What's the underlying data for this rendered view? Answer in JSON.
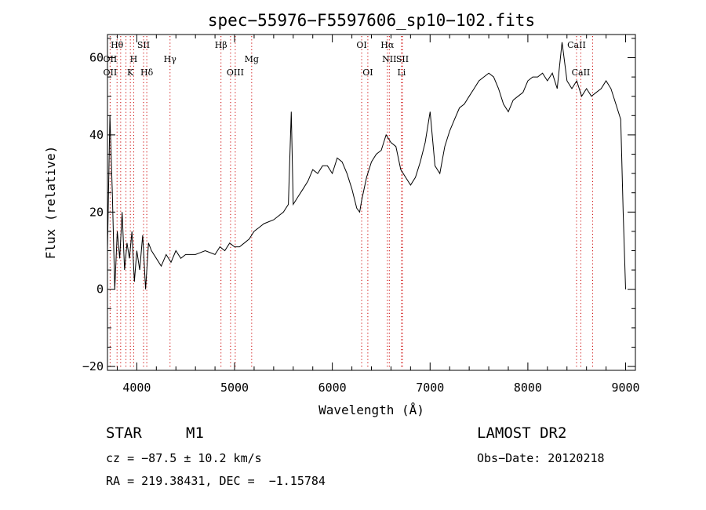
{
  "chart_data": {
    "type": "line",
    "title": "spec−55976−F5597606_sp10−102.fits",
    "xlabel": "Wavelength (Å)",
    "ylabel": "Flux (relative)",
    "xlim": [
      3700,
      9100
    ],
    "ylim": [
      -21,
      66
    ],
    "xticks": [
      4000,
      5000,
      6000,
      7000,
      8000,
      9000
    ],
    "xtick_labels": [
      "4000",
      "5000",
      "6000",
      "7000",
      "8000",
      "9000"
    ],
    "yticks": [
      -20,
      0,
      20,
      40,
      60
    ],
    "ytick_labels": [
      "−20",
      "0",
      "20",
      "40",
      "60"
    ],
    "line_color": "#000000",
    "marker_color": "#cc0000",
    "grid": false,
    "series": [
      {
        "name": "",
        "x": [
          3700,
          3725,
          3750,
          3775,
          3800,
          3825,
          3850,
          3875,
          3900,
          3925,
          3950,
          3975,
          4000,
          4030,
          4060,
          4090,
          4120,
          4150,
          4200,
          4250,
          4300,
          4350,
          4400,
          4450,
          4500,
          4600,
          4700,
          4800,
          4850,
          4900,
          4950,
          5000,
          5050,
          5100,
          5150,
          5200,
          5250,
          5300,
          5400,
          5500,
          5550,
          5580,
          5600,
          5650,
          5700,
          5750,
          5800,
          5850,
          5900,
          5950,
          6000,
          6050,
          6100,
          6150,
          6200,
          6250,
          6280,
          6300,
          6350,
          6400,
          6450,
          6500,
          6550,
          6600,
          6650,
          6700,
          6750,
          6800,
          6850,
          6900,
          6950,
          7000,
          7050,
          7100,
          7150,
          7200,
          7250,
          7300,
          7350,
          7400,
          7450,
          7500,
          7550,
          7600,
          7650,
          7700,
          7750,
          7800,
          7850,
          7900,
          7950,
          8000,
          8050,
          8100,
          8150,
          8200,
          8250,
          8300,
          8350,
          8400,
          8450,
          8500,
          8550,
          8600,
          8650,
          8700,
          8750,
          8800,
          8850,
          8900,
          8950,
          8975,
          9000
        ],
        "y": [
          10,
          45,
          25,
          0,
          15,
          8,
          20,
          5,
          12,
          8,
          15,
          2,
          10,
          5,
          14,
          0,
          12,
          10,
          8,
          6,
          9,
          7,
          10,
          8,
          9,
          9,
          10,
          9,
          11,
          10,
          12,
          11,
          11,
          12,
          13,
          15,
          16,
          17,
          18,
          20,
          22,
          46,
          22,
          24,
          26,
          28,
          31,
          30,
          32,
          32,
          30,
          34,
          33,
          30,
          26,
          21,
          20,
          23,
          29,
          33,
          35,
          36,
          40,
          38,
          37,
          31,
          29,
          27,
          29,
          33,
          38,
          46,
          32,
          30,
          37,
          41,
          44,
          47,
          48,
          50,
          52,
          54,
          55,
          56,
          55,
          52,
          48,
          46,
          49,
          50,
          51,
          54,
          55,
          55,
          56,
          54,
          56,
          52,
          64,
          54,
          52,
          54,
          50,
          52,
          50,
          51,
          52,
          54,
          52,
          48,
          44,
          20,
          0
        ]
      }
    ],
    "line_markers": [
      {
        "label": "Hθ",
        "x": 3798,
        "row": 0
      },
      {
        "label": "SII",
        "x": 4069,
        "row": 0
      },
      {
        "label": "Hβ",
        "x": 4861,
        "row": 0
      },
      {
        "label": "OI",
        "x": 6300,
        "row": 0
      },
      {
        "label": "Hα",
        "x": 6563,
        "row": 0
      },
      {
        "label": "CaII",
        "x": 8498,
        "row": 0
      },
      {
        "label": "OII",
        "x": 3727,
        "row": 1
      },
      {
        "label": "H",
        "x": 3968,
        "row": 1
      },
      {
        "label": "Hγ",
        "x": 4340,
        "row": 1
      },
      {
        "label": "Mg",
        "x": 5175,
        "row": 1
      },
      {
        "label": "NII",
        "x": 6583,
        "row": 1
      },
      {
        "label": "SII",
        "x": 6717,
        "row": 1
      },
      {
        "label": "OII",
        "x": 3727,
        "row": 2
      },
      {
        "label": "K",
        "x": 3934,
        "row": 2
      },
      {
        "label": "Hδ",
        "x": 4102,
        "row": 2
      },
      {
        "label": "OIII",
        "x": 5007,
        "row": 2
      },
      {
        "label": "OI",
        "x": 6363,
        "row": 2
      },
      {
        "label": "Li",
        "x": 6708,
        "row": 2
      },
      {
        "label": "CaII",
        "x": 8542,
        "row": 2
      }
    ],
    "extra_marker_lines": [
      3835,
      3889,
      4959,
      8662
    ]
  },
  "info": {
    "class": "STAR",
    "subclass": "M1",
    "survey": "LAMOST DR2",
    "cz": "cz = −87.5 ± 10.2 km/s",
    "obs_date": "Obs−Date: 20120218",
    "coords": "RA = 219.38431, DEC =  −1.15784"
  }
}
